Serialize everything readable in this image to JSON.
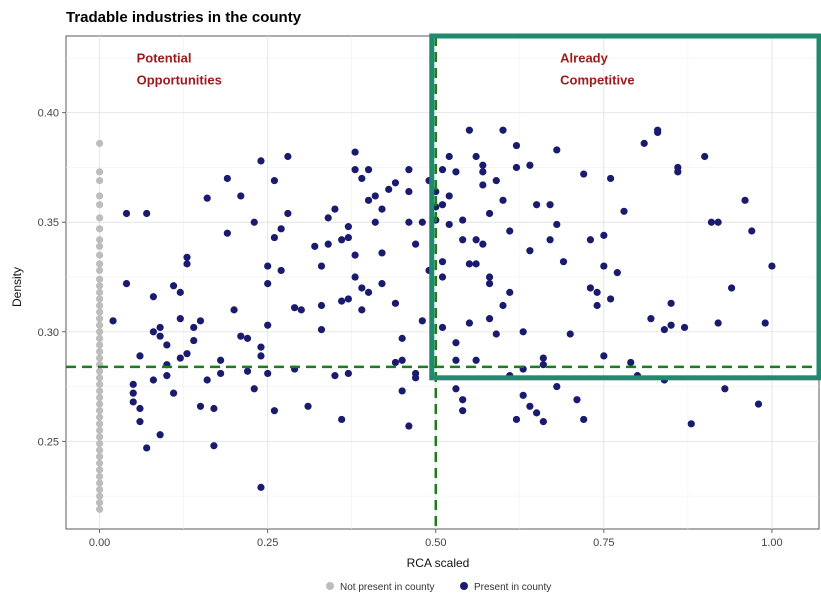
{
  "chart_data": {
    "type": "scatter",
    "title": "Tradable industries in the county",
    "xlabel": "RCA scaled",
    "ylabel": "Density",
    "xlim": [
      -0.05,
      1.07
    ],
    "ylim": [
      0.21,
      0.435
    ],
    "x_ticks": [
      0,
      0.25,
      0.5,
      0.75,
      1
    ],
    "x_tick_labels": [
      "0.00",
      "0.25",
      "0.50",
      "0.75",
      "1.00"
    ],
    "y_ticks": [
      0.25,
      0.3,
      0.35,
      0.4
    ],
    "y_tick_labels": [
      "0.25",
      "0.30",
      "0.35",
      "0.40"
    ],
    "grid": true,
    "legend_position": "bottom",
    "reference_lines": {
      "x": 0.5,
      "y": 0.284,
      "style": "dashed",
      "color": "#1e7b1e"
    },
    "highlight_box": {
      "x_from": 0.5,
      "y_from": 0.279,
      "color": "#1e8a6e"
    },
    "annotations": [
      {
        "lines": [
          "Potential",
          "Opportunities"
        ],
        "x": 0.055,
        "y": 0.423,
        "color": "#9b1b1b"
      },
      {
        "lines": [
          "Already",
          "Competitive"
        ],
        "x": 0.685,
        "y": 0.423,
        "color": "#9b1b1b"
      }
    ],
    "series": [
      {
        "name": "Not present in county",
        "color": "#bdbdbd",
        "points": [
          [
            0,
            0.386
          ],
          [
            0,
            0.373
          ],
          [
            0,
            0.369
          ],
          [
            0,
            0.362
          ],
          [
            0,
            0.358
          ],
          [
            0,
            0.352
          ],
          [
            0,
            0.347
          ],
          [
            0,
            0.342
          ],
          [
            0,
            0.339
          ],
          [
            0,
            0.335
          ],
          [
            0,
            0.331
          ],
          [
            0,
            0.328
          ],
          [
            0,
            0.324
          ],
          [
            0,
            0.321
          ],
          [
            0,
            0.318
          ],
          [
            0,
            0.315
          ],
          [
            0,
            0.312
          ],
          [
            0,
            0.309
          ],
          [
            0,
            0.306
          ],
          [
            0,
            0.303
          ],
          [
            0,
            0.3
          ],
          [
            0,
            0.297
          ],
          [
            0,
            0.294
          ],
          [
            0,
            0.291
          ],
          [
            0,
            0.288
          ],
          [
            0,
            0.285
          ],
          [
            0,
            0.282
          ],
          [
            0,
            0.279
          ],
          [
            0,
            0.276
          ],
          [
            0,
            0.273
          ],
          [
            0,
            0.27
          ],
          [
            0,
            0.267
          ],
          [
            0,
            0.264
          ],
          [
            0,
            0.261
          ],
          [
            0,
            0.258
          ],
          [
            0,
            0.255
          ],
          [
            0,
            0.252
          ],
          [
            0,
            0.249
          ],
          [
            0,
            0.246
          ],
          [
            0,
            0.243
          ],
          [
            0,
            0.24
          ],
          [
            0,
            0.237
          ],
          [
            0,
            0.234
          ],
          [
            0,
            0.231
          ],
          [
            0,
            0.228
          ],
          [
            0,
            0.225
          ],
          [
            0,
            0.222
          ],
          [
            0,
            0.219
          ]
        ]
      },
      {
        "name": "Present in county",
        "color": "#1a1a6e",
        "points": [
          [
            0.02,
            0.305
          ],
          [
            0.04,
            0.354
          ],
          [
            0.04,
            0.322
          ],
          [
            0.05,
            0.276
          ],
          [
            0.05,
            0.272
          ],
          [
            0.05,
            0.268
          ],
          [
            0.06,
            0.259
          ],
          [
            0.06,
            0.265
          ],
          [
            0.06,
            0.289
          ],
          [
            0.07,
            0.354
          ],
          [
            0.07,
            0.247
          ],
          [
            0.08,
            0.316
          ],
          [
            0.08,
            0.3
          ],
          [
            0.09,
            0.302
          ],
          [
            0.09,
            0.298
          ],
          [
            0.09,
            0.253
          ],
          [
            0.1,
            0.294
          ],
          [
            0.1,
            0.28
          ],
          [
            0.11,
            0.272
          ],
          [
            0.11,
            0.321
          ],
          [
            0.12,
            0.318
          ],
          [
            0.12,
            0.306
          ],
          [
            0.12,
            0.288
          ],
          [
            0.13,
            0.334
          ],
          [
            0.13,
            0.331
          ],
          [
            0.13,
            0.29
          ],
          [
            0.14,
            0.302
          ],
          [
            0.14,
            0.296
          ],
          [
            0.15,
            0.266
          ],
          [
            0.16,
            0.278
          ],
          [
            0.16,
            0.361
          ],
          [
            0.17,
            0.248
          ],
          [
            0.17,
            0.265
          ],
          [
            0.18,
            0.287
          ],
          [
            0.18,
            0.281
          ],
          [
            0.19,
            0.37
          ],
          [
            0.19,
            0.345
          ],
          [
            0.2,
            0.31
          ],
          [
            0.21,
            0.362
          ],
          [
            0.22,
            0.297
          ],
          [
            0.22,
            0.282
          ],
          [
            0.23,
            0.274
          ],
          [
            0.23,
            0.35
          ],
          [
            0.24,
            0.229
          ],
          [
            0.24,
            0.378
          ],
          [
            0.24,
            0.289
          ],
          [
            0.24,
            0.293
          ],
          [
            0.25,
            0.33
          ],
          [
            0.25,
            0.322
          ],
          [
            0.25,
            0.303
          ],
          [
            0.25,
            0.281
          ],
          [
            0.26,
            0.369
          ],
          [
            0.26,
            0.343
          ],
          [
            0.26,
            0.264
          ],
          [
            0.27,
            0.347
          ],
          [
            0.28,
            0.38
          ],
          [
            0.28,
            0.354
          ],
          [
            0.29,
            0.311
          ],
          [
            0.29,
            0.283
          ],
          [
            0.31,
            0.266
          ],
          [
            0.32,
            0.339
          ],
          [
            0.33,
            0.33
          ],
          [
            0.33,
            0.312
          ],
          [
            0.34,
            0.352
          ],
          [
            0.34,
            0.34
          ],
          [
            0.35,
            0.356
          ],
          [
            0.35,
            0.28
          ],
          [
            0.36,
            0.314
          ],
          [
            0.36,
            0.26
          ],
          [
            0.37,
            0.348
          ],
          [
            0.37,
            0.343
          ],
          [
            0.37,
            0.315
          ],
          [
            0.37,
            0.281
          ],
          [
            0.38,
            0.382
          ],
          [
            0.38,
            0.374
          ],
          [
            0.38,
            0.335
          ],
          [
            0.38,
            0.325
          ],
          [
            0.39,
            0.37
          ],
          [
            0.39,
            0.32
          ],
          [
            0.39,
            0.31
          ],
          [
            0.4,
            0.374
          ],
          [
            0.4,
            0.36
          ],
          [
            0.4,
            0.318
          ],
          [
            0.41,
            0.362
          ],
          [
            0.41,
            0.35
          ],
          [
            0.42,
            0.356
          ],
          [
            0.42,
            0.336
          ],
          [
            0.43,
            0.365
          ],
          [
            0.44,
            0.286
          ],
          [
            0.44,
            0.368
          ],
          [
            0.44,
            0.313
          ],
          [
            0.45,
            0.297
          ],
          [
            0.45,
            0.287
          ],
          [
            0.45,
            0.273
          ],
          [
            0.46,
            0.374
          ],
          [
            0.46,
            0.364
          ],
          [
            0.46,
            0.35
          ],
          [
            0.46,
            0.257
          ],
          [
            0.47,
            0.281
          ],
          [
            0.47,
            0.34
          ],
          [
            0.48,
            0.35
          ],
          [
            0.49,
            0.369
          ],
          [
            0.49,
            0.328
          ],
          [
            0.5,
            0.357
          ],
          [
            0.5,
            0.351
          ],
          [
            0.5,
            0.364
          ],
          [
            0.51,
            0.374
          ],
          [
            0.51,
            0.358
          ],
          [
            0.51,
            0.332
          ],
          [
            0.51,
            0.302
          ],
          [
            0.51,
            0.325
          ],
          [
            0.52,
            0.38
          ],
          [
            0.52,
            0.362
          ],
          [
            0.52,
            0.349
          ],
          [
            0.53,
            0.373
          ],
          [
            0.53,
            0.287
          ],
          [
            0.53,
            0.274
          ],
          [
            0.54,
            0.351
          ],
          [
            0.54,
            0.269
          ],
          [
            0.54,
            0.264
          ],
          [
            0.54,
            0.342
          ],
          [
            0.55,
            0.392
          ],
          [
            0.55,
            0.331
          ],
          [
            0.55,
            0.304
          ],
          [
            0.56,
            0.38
          ],
          [
            0.56,
            0.342
          ],
          [
            0.56,
            0.331
          ],
          [
            0.57,
            0.376
          ],
          [
            0.57,
            0.373
          ],
          [
            0.57,
            0.367
          ],
          [
            0.57,
            0.34
          ],
          [
            0.58,
            0.354
          ],
          [
            0.58,
            0.325
          ],
          [
            0.58,
            0.306
          ],
          [
            0.59,
            0.369
          ],
          [
            0.59,
            0.299
          ],
          [
            0.6,
            0.392
          ],
          [
            0.6,
            0.36
          ],
          [
            0.61,
            0.346
          ],
          [
            0.61,
            0.318
          ],
          [
            0.61,
            0.28
          ],
          [
            0.62,
            0.385
          ],
          [
            0.62,
            0.375
          ],
          [
            0.62,
            0.26
          ],
          [
            0.63,
            0.271
          ],
          [
            0.63,
            0.283
          ],
          [
            0.64,
            0.376
          ],
          [
            0.64,
            0.337
          ],
          [
            0.64,
            0.266
          ],
          [
            0.65,
            0.263
          ],
          [
            0.65,
            0.358
          ],
          [
            0.66,
            0.285
          ],
          [
            0.66,
            0.259
          ],
          [
            0.67,
            0.358
          ],
          [
            0.67,
            0.342
          ],
          [
            0.68,
            0.383
          ],
          [
            0.68,
            0.349
          ],
          [
            0.68,
            0.275
          ],
          [
            0.69,
            0.332
          ],
          [
            0.7,
            0.299
          ],
          [
            0.71,
            0.269
          ],
          [
            0.72,
            0.372
          ],
          [
            0.72,
            0.26
          ],
          [
            0.73,
            0.342
          ],
          [
            0.73,
            0.32
          ],
          [
            0.74,
            0.318
          ],
          [
            0.74,
            0.312
          ],
          [
            0.75,
            0.344
          ],
          [
            0.75,
            0.33
          ],
          [
            0.75,
            0.289
          ],
          [
            0.76,
            0.37
          ],
          [
            0.76,
            0.315
          ],
          [
            0.77,
            0.327
          ],
          [
            0.78,
            0.355
          ],
          [
            0.79,
            0.286
          ],
          [
            0.8,
            0.28
          ],
          [
            0.81,
            0.386
          ],
          [
            0.82,
            0.306
          ],
          [
            0.83,
            0.391
          ],
          [
            0.83,
            0.392
          ],
          [
            0.84,
            0.301
          ],
          [
            0.84,
            0.278
          ],
          [
            0.85,
            0.313
          ],
          [
            0.85,
            0.303
          ],
          [
            0.86,
            0.375
          ],
          [
            0.86,
            0.373
          ],
          [
            0.87,
            0.302
          ],
          [
            0.88,
            0.258
          ],
          [
            0.9,
            0.38
          ],
          [
            0.91,
            0.35
          ],
          [
            0.92,
            0.35
          ],
          [
            0.92,
            0.304
          ],
          [
            0.93,
            0.274
          ],
          [
            0.94,
            0.32
          ],
          [
            0.96,
            0.36
          ],
          [
            0.97,
            0.346
          ],
          [
            0.98,
            0.267
          ],
          [
            0.99,
            0.304
          ],
          [
            1.0,
            0.33
          ],
          [
            0.56,
            0.287
          ],
          [
            0.58,
            0.322
          ],
          [
            0.6,
            0.312
          ],
          [
            0.66,
            0.288
          ],
          [
            0.47,
            0.279
          ],
          [
            0.36,
            0.342
          ],
          [
            0.3,
            0.31
          ],
          [
            0.21,
            0.298
          ],
          [
            0.15,
            0.305
          ],
          [
            0.1,
            0.285
          ],
          [
            0.08,
            0.278
          ],
          [
            0.27,
            0.328
          ],
          [
            0.33,
            0.301
          ],
          [
            0.42,
            0.322
          ],
          [
            0.48,
            0.305
          ],
          [
            0.53,
            0.295
          ],
          [
            0.63,
            0.3
          ]
        ]
      }
    ]
  }
}
